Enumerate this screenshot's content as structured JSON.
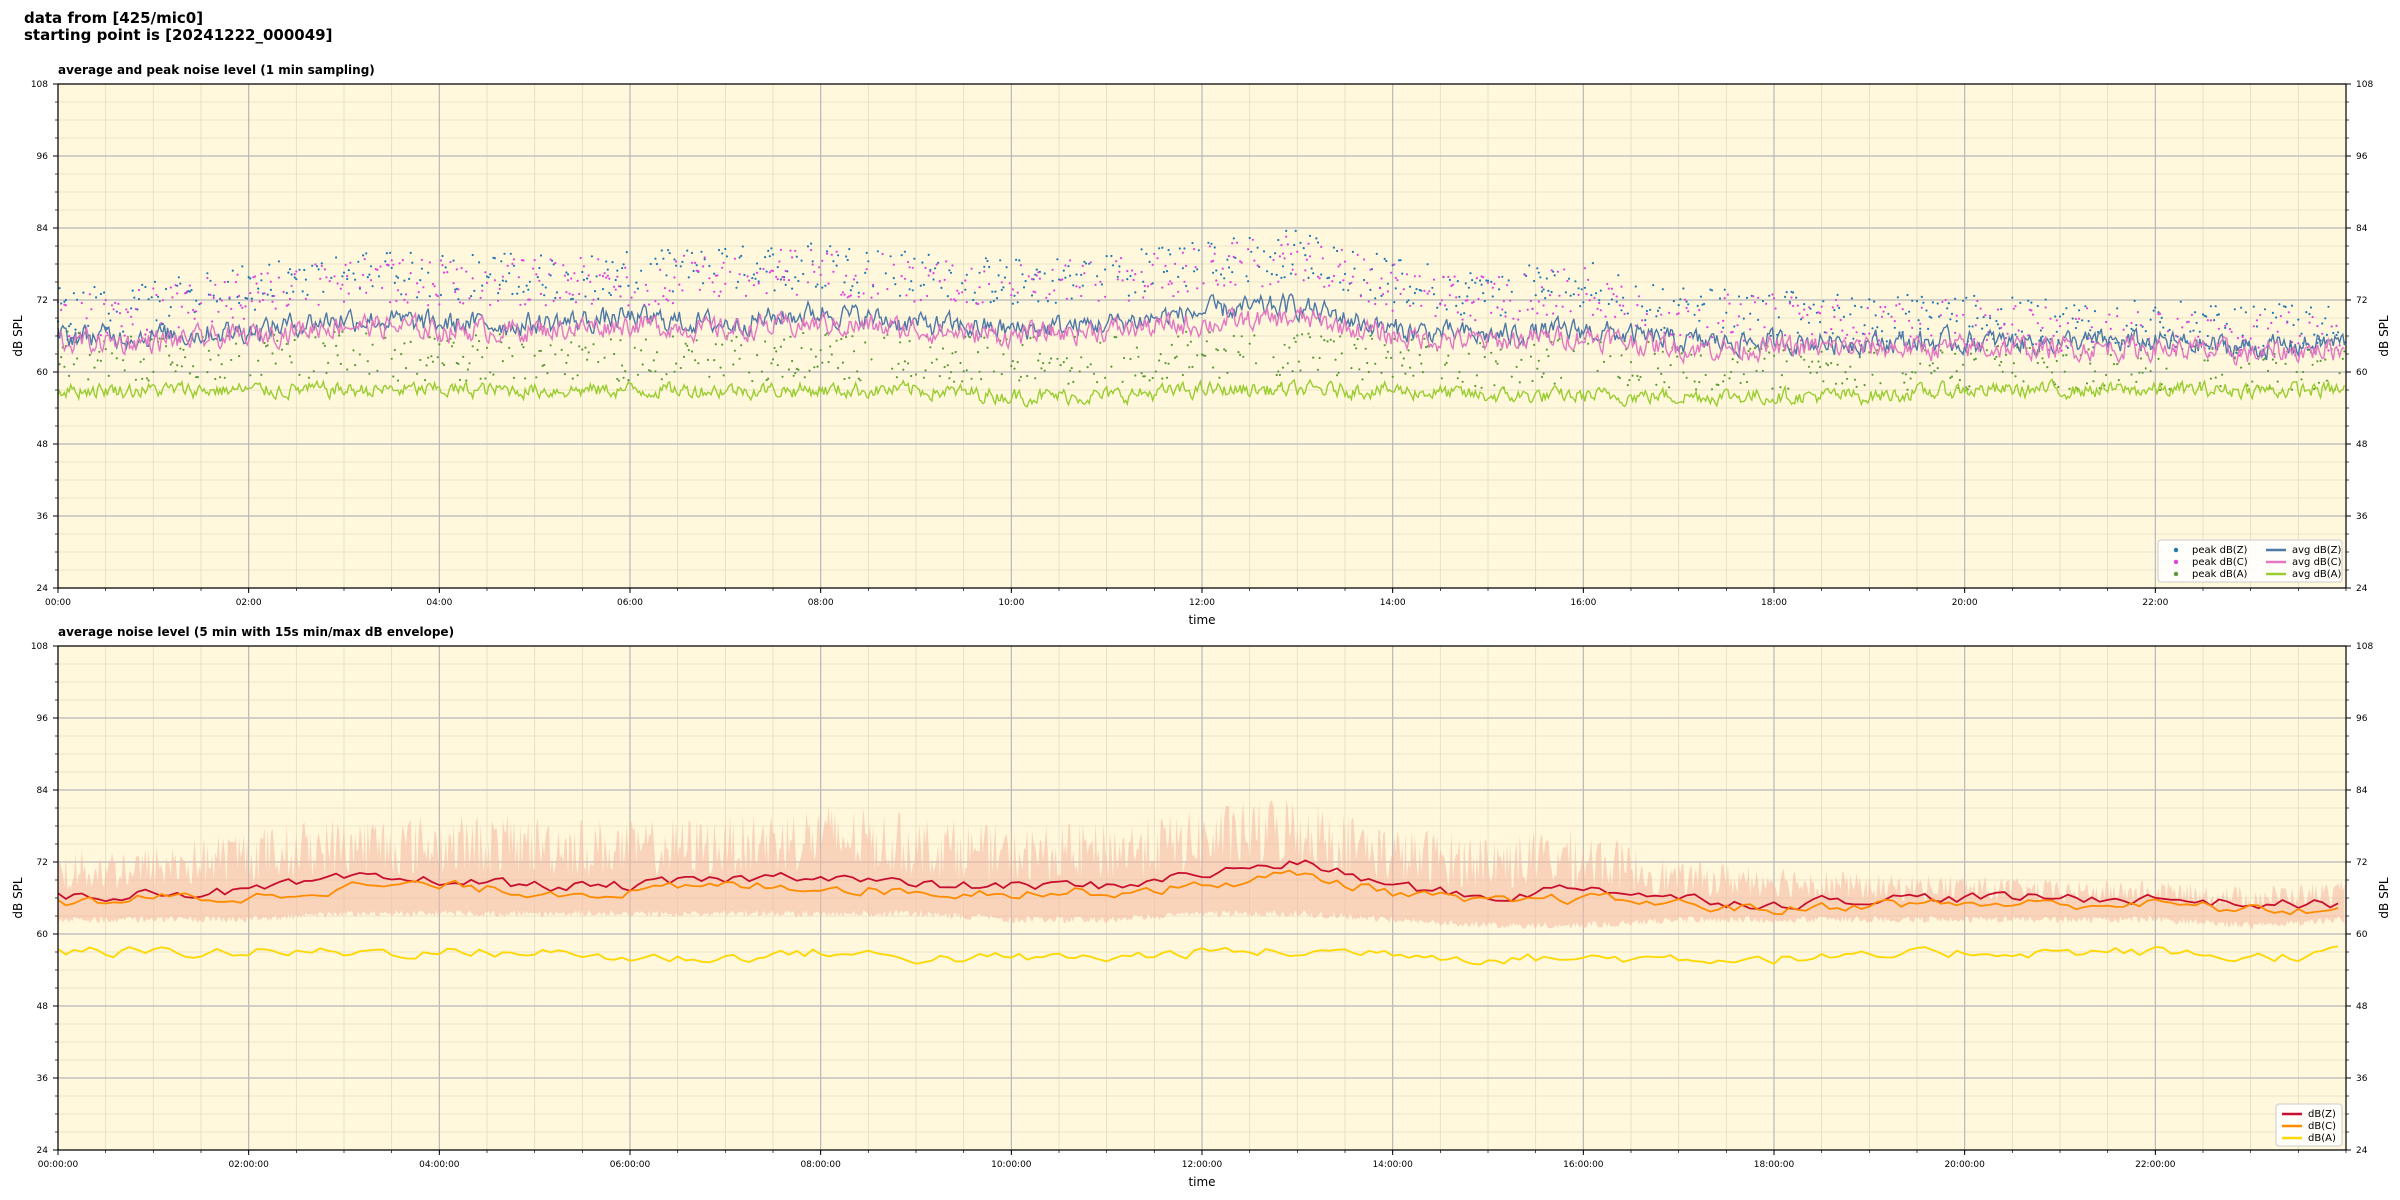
{
  "header": {
    "line1": "data from [425/mic0]",
    "line2": "starting point is [20241222_000049]"
  },
  "chart_data": [
    {
      "type": "scatter+line",
      "title": "average and peak noise level (1 min sampling)",
      "xlabel": "time",
      "ylabel": "dB SPL",
      "ylim": [
        24,
        108
      ],
      "yticks": [
        24,
        36,
        48,
        60,
        72,
        84,
        96,
        108
      ],
      "xlim_minutes": [
        0,
        1440
      ],
      "xticks": [
        "00:00",
        "02:00",
        "04:00",
        "06:00",
        "08:00",
        "10:00",
        "12:00",
        "14:00",
        "16:00",
        "18:00",
        "20:00",
        "22:00"
      ],
      "grid": true,
      "legend_position": "bottom-right",
      "series": [
        {
          "name": "peak dB(Z)",
          "kind": "points",
          "color": "#1f77b4",
          "samples_minutes": [
            0,
            60,
            120,
            180,
            240,
            300,
            360,
            420,
            480,
            540,
            600,
            660,
            720,
            780,
            840,
            900,
            960,
            1020,
            1080,
            1140,
            1200,
            1260,
            1320,
            1380,
            1439
          ],
          "values": [
            70,
            71,
            74,
            76,
            76,
            76,
            76,
            77,
            78,
            76,
            75,
            76,
            78,
            80,
            75,
            73,
            75,
            70,
            70,
            69,
            69,
            68,
            68,
            67,
            68
          ]
        },
        {
          "name": "peak dB(C)",
          "kind": "points",
          "color": "#e040e0",
          "samples_minutes": [
            0,
            60,
            120,
            180,
            240,
            300,
            360,
            420,
            480,
            540,
            600,
            660,
            720,
            780,
            840,
            900,
            960,
            1020,
            1080,
            1140,
            1200,
            1260,
            1320,
            1380,
            1439
          ],
          "values": [
            69,
            70,
            73,
            75,
            75,
            75,
            75,
            76,
            77,
            75,
            74,
            75,
            77,
            79,
            74,
            72,
            74,
            69,
            69,
            68,
            68,
            67,
            67,
            66,
            67
          ]
        },
        {
          "name": "peak dB(A)",
          "kind": "points",
          "color": "#5a9a3a",
          "samples_minutes": [
            0,
            60,
            120,
            180,
            240,
            300,
            360,
            420,
            480,
            540,
            600,
            660,
            720,
            780,
            840,
            900,
            960,
            1020,
            1080,
            1140,
            1200,
            1260,
            1320,
            1380,
            1439
          ],
          "values": [
            63,
            62,
            63,
            63,
            62,
            63,
            62,
            62,
            63,
            62,
            62,
            62,
            63,
            63,
            62,
            61,
            62,
            61,
            61,
            61,
            61,
            61,
            61,
            61,
            61
          ]
        },
        {
          "name": "avg dB(Z)",
          "kind": "line",
          "color": "#4e79a7",
          "samples_minutes": [
            0,
            60,
            120,
            180,
            240,
            300,
            360,
            420,
            480,
            540,
            600,
            660,
            720,
            780,
            840,
            900,
            960,
            1020,
            1080,
            1140,
            1200,
            1260,
            1320,
            1380,
            1439
          ],
          "values": [
            66,
            66,
            67,
            69,
            68,
            68,
            69,
            68,
            70,
            68,
            67,
            68,
            70,
            71,
            67,
            66,
            67,
            65,
            65,
            65,
            65,
            65,
            65,
            64,
            65
          ]
        },
        {
          "name": "avg dB(C)",
          "kind": "line",
          "color": "#e377c2",
          "samples_minutes": [
            0,
            60,
            120,
            180,
            240,
            300,
            360,
            420,
            480,
            540,
            600,
            660,
            720,
            780,
            840,
            900,
            960,
            1020,
            1080,
            1140,
            1200,
            1260,
            1320,
            1380,
            1439
          ],
          "values": [
            65,
            65,
            66,
            68,
            67,
            67,
            68,
            67,
            68,
            67,
            66,
            67,
            68,
            69,
            66,
            65,
            66,
            64,
            64,
            64,
            64,
            64,
            64,
            63,
            64
          ]
        },
        {
          "name": "avg dB(A)",
          "kind": "line",
          "color": "#9acd32",
          "samples_minutes": [
            0,
            60,
            120,
            180,
            240,
            300,
            360,
            420,
            480,
            540,
            600,
            660,
            720,
            780,
            840,
            900,
            960,
            1020,
            1080,
            1140,
            1200,
            1260,
            1320,
            1380,
            1439
          ],
          "values": [
            57,
            57,
            57,
            57,
            57,
            57,
            57,
            57,
            57,
            57,
            56,
            56,
            57,
            57,
            57,
            56,
            56,
            56,
            56,
            56,
            57,
            57,
            57,
            57,
            57
          ]
        }
      ]
    },
    {
      "type": "line",
      "title": "average noise level (5 min with 15s min/max dB envelope)",
      "xlabel": "time",
      "ylabel": "dB SPL",
      "ylim": [
        24,
        108
      ],
      "yticks": [
        24,
        36,
        48,
        60,
        72,
        84,
        96,
        108
      ],
      "xlim_minutes": [
        0,
        1440
      ],
      "xticks": [
        "00:00:00",
        "02:00:00",
        "04:00:00",
        "06:00:00",
        "08:00:00",
        "10:00:00",
        "12:00:00",
        "14:00:00",
        "16:00:00",
        "18:00:00",
        "20:00:00",
        "22:00:00"
      ],
      "grid": true,
      "legend_position": "bottom-right",
      "envelope": {
        "color": "#f4b6a0",
        "samples_minutes": [
          0,
          60,
          120,
          180,
          240,
          300,
          360,
          420,
          480,
          540,
          600,
          660,
          720,
          780,
          840,
          900,
          960,
          1020,
          1080,
          1140,
          1200,
          1260,
          1320,
          1380,
          1439
        ],
        "max": [
          74,
          75,
          78,
          80,
          80,
          80,
          79,
          80,
          82,
          80,
          78,
          79,
          81,
          84,
          78,
          77,
          78,
          72,
          72,
          70,
          70,
          69,
          69,
          68,
          69
        ],
        "min": [
          63,
          63,
          63,
          64,
          64,
          64,
          64,
          64,
          64,
          64,
          63,
          63,
          64,
          64,
          63,
          62,
          62,
          63,
          63,
          63,
          63,
          63,
          63,
          62,
          63
        ]
      },
      "series": [
        {
          "name": "dB(Z)",
          "color": "#c8102e",
          "samples_minutes": [
            0,
            60,
            120,
            180,
            240,
            300,
            360,
            420,
            480,
            540,
            600,
            660,
            720,
            780,
            840,
            900,
            960,
            1020,
            1080,
            1140,
            1200,
            1260,
            1320,
            1380,
            1439
          ],
          "values": [
            66,
            67,
            67,
            69,
            69,
            68,
            68,
            69,
            70,
            68,
            68,
            68,
            70,
            72,
            68,
            66,
            68,
            66,
            65,
            66,
            66,
            66,
            66,
            65,
            65
          ]
        },
        {
          "name": "dB(C)",
          "color": "#ff8c00",
          "samples_minutes": [
            0,
            60,
            120,
            180,
            240,
            300,
            360,
            420,
            480,
            540,
            600,
            660,
            720,
            780,
            840,
            900,
            960,
            1020,
            1080,
            1140,
            1200,
            1260,
            1320,
            1380,
            1439
          ],
          "values": [
            65,
            66,
            66,
            68,
            68,
            67,
            67,
            68,
            68,
            67,
            67,
            67,
            68,
            70,
            67,
            65,
            66,
            65,
            64,
            65,
            65,
            65,
            65,
            64,
            64
          ]
        },
        {
          "name": "dB(A)",
          "color": "#ffd700",
          "samples_minutes": [
            0,
            60,
            120,
            180,
            240,
            300,
            360,
            420,
            480,
            540,
            600,
            660,
            720,
            780,
            840,
            900,
            960,
            1020,
            1080,
            1140,
            1200,
            1260,
            1320,
            1380,
            1439
          ],
          "values": [
            57,
            57,
            57,
            57,
            57,
            57,
            56,
            56,
            57,
            56,
            56,
            56,
            57,
            57,
            57,
            56,
            56,
            56,
            56,
            56,
            57,
            57,
            57,
            56,
            57
          ]
        }
      ]
    }
  ]
}
